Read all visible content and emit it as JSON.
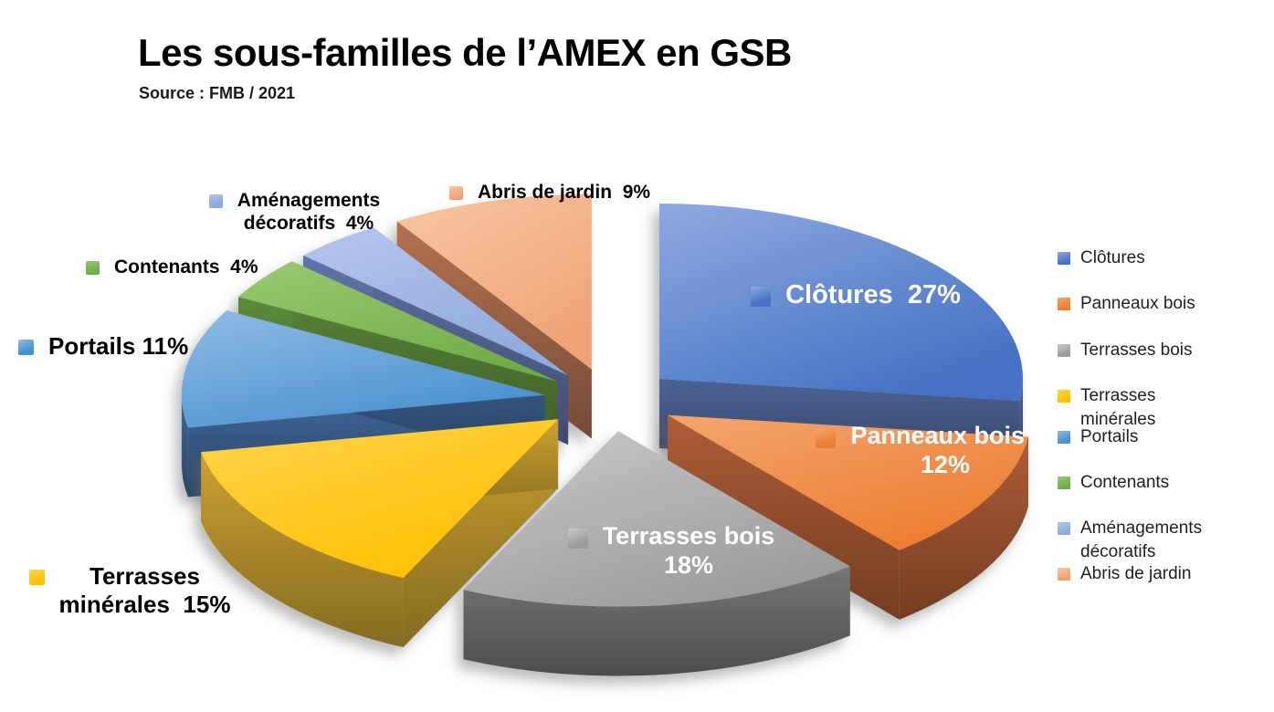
{
  "title": "Les sous-familles de l’AMEX en GSB",
  "source": "Source : FMB / 2021",
  "chart_data": {
    "type": "pie",
    "is_3d": true,
    "exploded": true,
    "title": "Les sous-familles de l’AMEX en GSB",
    "source": "Source : FMB / 2021",
    "unit": "%",
    "total": 100,
    "start_angle_deg": 0,
    "direction": "clockwise",
    "legend_position": "right",
    "categories": [
      "Clôtures",
      "Panneaux bois",
      "Terrasses bois",
      "Terrasses minérales",
      "Portails",
      "Contenants",
      "Aménagements décoratifs",
      "Abris de jardin"
    ],
    "values": [
      27,
      12,
      18,
      15,
      11,
      4,
      4,
      9
    ],
    "slices": [
      {
        "id": "clotures",
        "label": "Clôtures",
        "value": 27,
        "pct_label": "27%",
        "display_label": [
          "Clôtures  27%"
        ],
        "label_placement": "inside",
        "color": "#4472C4",
        "color_light": "#8FA9E0",
        "color_side": "#3D4F77"
      },
      {
        "id": "panneaux-bois",
        "label": "Panneaux bois",
        "value": 12,
        "pct_label": "12%",
        "display_label": [
          "Panneaux bois ;",
          "12%"
        ],
        "label_placement": "inside",
        "color": "#ED7D31",
        "color_light": "#F3A56F",
        "color_side": "#8C4A2B"
      },
      {
        "id": "terrasses-bois",
        "label": "Terrasses bois",
        "value": 18,
        "pct_label": "18%",
        "display_label": [
          "Terrasses bois",
          "18%"
        ],
        "label_placement": "inside",
        "color": "#9C9C9C",
        "color_light": "#C9C9C9",
        "color_side": "#5E5E5E"
      },
      {
        "id": "terrasses-minerales",
        "label": "Terrasses minérales",
        "value": 15,
        "pct_label": "15%",
        "display_label": [
          "Terrasses",
          "minérales  15%"
        ],
        "label_placement": "outside",
        "color": "#FFC000",
        "color_light": "#FFD44F",
        "color_side": "#A28127"
      },
      {
        "id": "portails",
        "label": "Portails",
        "value": 11,
        "pct_label": "11%",
        "display_label": [
          "Portails 11%"
        ],
        "label_placement": "outside",
        "color": "#4A90D0",
        "color_light": "#8FBCE4",
        "color_side": "#32527A"
      },
      {
        "id": "contenants",
        "label": "Contenants",
        "value": 4,
        "pct_label": "4%",
        "display_label": [
          "Contenants  4%"
        ],
        "label_placement": "outside",
        "color": "#70AD47",
        "color_light": "#9BC972",
        "color_side": "#4A7030"
      },
      {
        "id": "amenagements-decoratifs",
        "label": "Aménagements décoratifs",
        "value": 4,
        "pct_label": "4%",
        "display_label": [
          "Aménagements",
          "décoratifs  4%"
        ],
        "label_placement": "outside",
        "color": "#8FAADC",
        "color_light": "#B5C6EC",
        "color_side": "#4E5D86"
      },
      {
        "id": "abris-de-jardin",
        "label": "Abris de jardin",
        "value": 9,
        "pct_label": "9%",
        "display_label": [
          "Abris de jardin  9%"
        ],
        "label_placement": "outside",
        "color": "#F0A377",
        "color_light": "#F7C7A3",
        "color_side": "#8F5B41"
      }
    ]
  }
}
